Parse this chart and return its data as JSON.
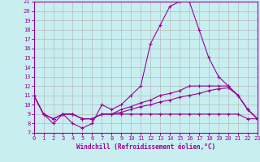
{
  "xlabel": "Windchill (Refroidissement éolien,°C)",
  "x": [
    0,
    1,
    2,
    3,
    4,
    5,
    6,
    7,
    8,
    9,
    10,
    11,
    12,
    13,
    14,
    15,
    16,
    17,
    18,
    19,
    20,
    21,
    22,
    23
  ],
  "line1": [
    11,
    9,
    8,
    9,
    8,
    7.5,
    8,
    10,
    9.5,
    10,
    11,
    12,
    16.5,
    18.5,
    20.5,
    21,
    21,
    18,
    15,
    13,
    12,
    11,
    9.5,
    8.5
  ],
  "line2": [
    11,
    9,
    8.5,
    9,
    9,
    8.5,
    8.5,
    9,
    9,
    9.5,
    9.8,
    10.2,
    10.5,
    11,
    11.2,
    11.5,
    12,
    12,
    12,
    12,
    12,
    11,
    9.5,
    8.5
  ],
  "line3": [
    11,
    9,
    8.5,
    9,
    9,
    8.5,
    8.5,
    9,
    9,
    9.2,
    9.5,
    9.8,
    10,
    10.3,
    10.5,
    10.8,
    11,
    11.2,
    11.5,
    11.7,
    11.8,
    11,
    9.5,
    8.5
  ],
  "line4": [
    11,
    9,
    8.5,
    9,
    9,
    8.5,
    8.5,
    9,
    9,
    9,
    9,
    9,
    9,
    9,
    9,
    9,
    9,
    9,
    9,
    9,
    9,
    9,
    8.5,
    8.5
  ],
  "color": "#990099",
  "bg_color": "#c8eef0",
  "grid_color": "#b0b0b0",
  "ylim": [
    7,
    21
  ],
  "xlim": [
    0,
    23
  ],
  "yticks": [
    7,
    8,
    9,
    10,
    11,
    12,
    13,
    14,
    15,
    16,
    17,
    18,
    19,
    20,
    21
  ],
  "xticks": [
    0,
    1,
    2,
    3,
    4,
    5,
    6,
    7,
    8,
    9,
    10,
    11,
    12,
    13,
    14,
    15,
    16,
    17,
    18,
    19,
    20,
    21,
    22,
    23
  ],
  "marker": "+",
  "markersize": 3,
  "linewidth": 0.8,
  "tick_fontsize": 5,
  "xlabel_fontsize": 5.5
}
